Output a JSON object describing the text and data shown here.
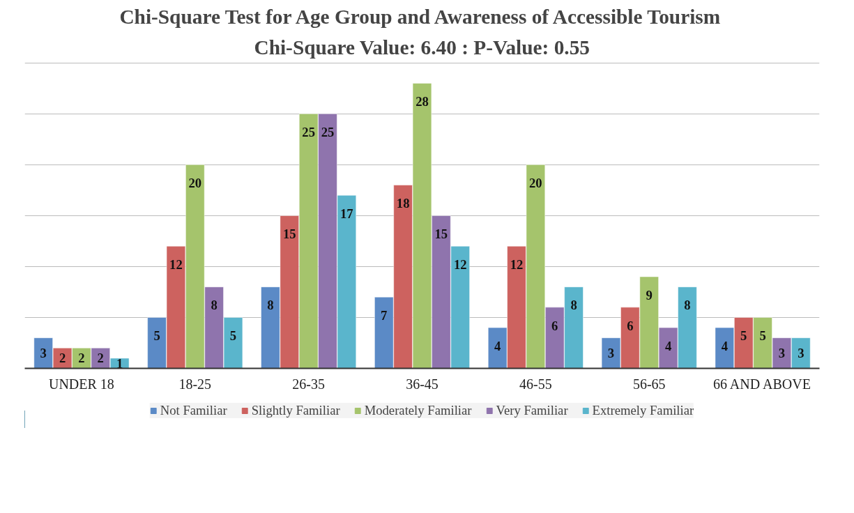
{
  "chart_data": {
    "type": "bar",
    "title": "Chi-Square Test for Age Group and Awareness of Accessible Tourism",
    "subtitle": "Chi-Square Value: 6.40 : P-Value: 0.55",
    "categories": [
      "UNDER 18",
      "18-25",
      "26-35",
      "36-45",
      "46-55",
      "56-65",
      "66 AND ABOVE"
    ],
    "series": [
      {
        "name": "Not Familiar",
        "color": "#5b8ac6",
        "values": [
          3,
          5,
          8,
          7,
          4,
          3,
          4
        ]
      },
      {
        "name": "Slightly Familiar",
        "color": "#cd625f",
        "values": [
          2,
          12,
          15,
          18,
          12,
          6,
          5
        ]
      },
      {
        "name": "Moderately Familiar",
        "color": "#a5c46c",
        "values": [
          2,
          20,
          25,
          28,
          20,
          9,
          5
        ]
      },
      {
        "name": "Very Familiar",
        "color": "#8f74ad",
        "values": [
          2,
          8,
          25,
          15,
          6,
          4,
          3
        ]
      },
      {
        "name": "Extremely Familiar",
        "color": "#5ab5cc",
        "values": [
          1,
          5,
          17,
          12,
          8,
          8,
          3
        ]
      }
    ],
    "ylim": [
      0,
      30
    ],
    "yticks": [
      {
        "value": 0,
        "label": null
      },
      {
        "value": 5,
        "label": null
      },
      {
        "value": 10,
        "label": null
      },
      {
        "value": 15,
        "label": null
      },
      {
        "value": 20,
        "label": null
      },
      {
        "value": 25,
        "label": null
      },
      {
        "value": 30,
        "label": null
      }
    ],
    "tick_labels": "x",
    "grid": "y",
    "legend": "bottom",
    "data_labels": true
  }
}
